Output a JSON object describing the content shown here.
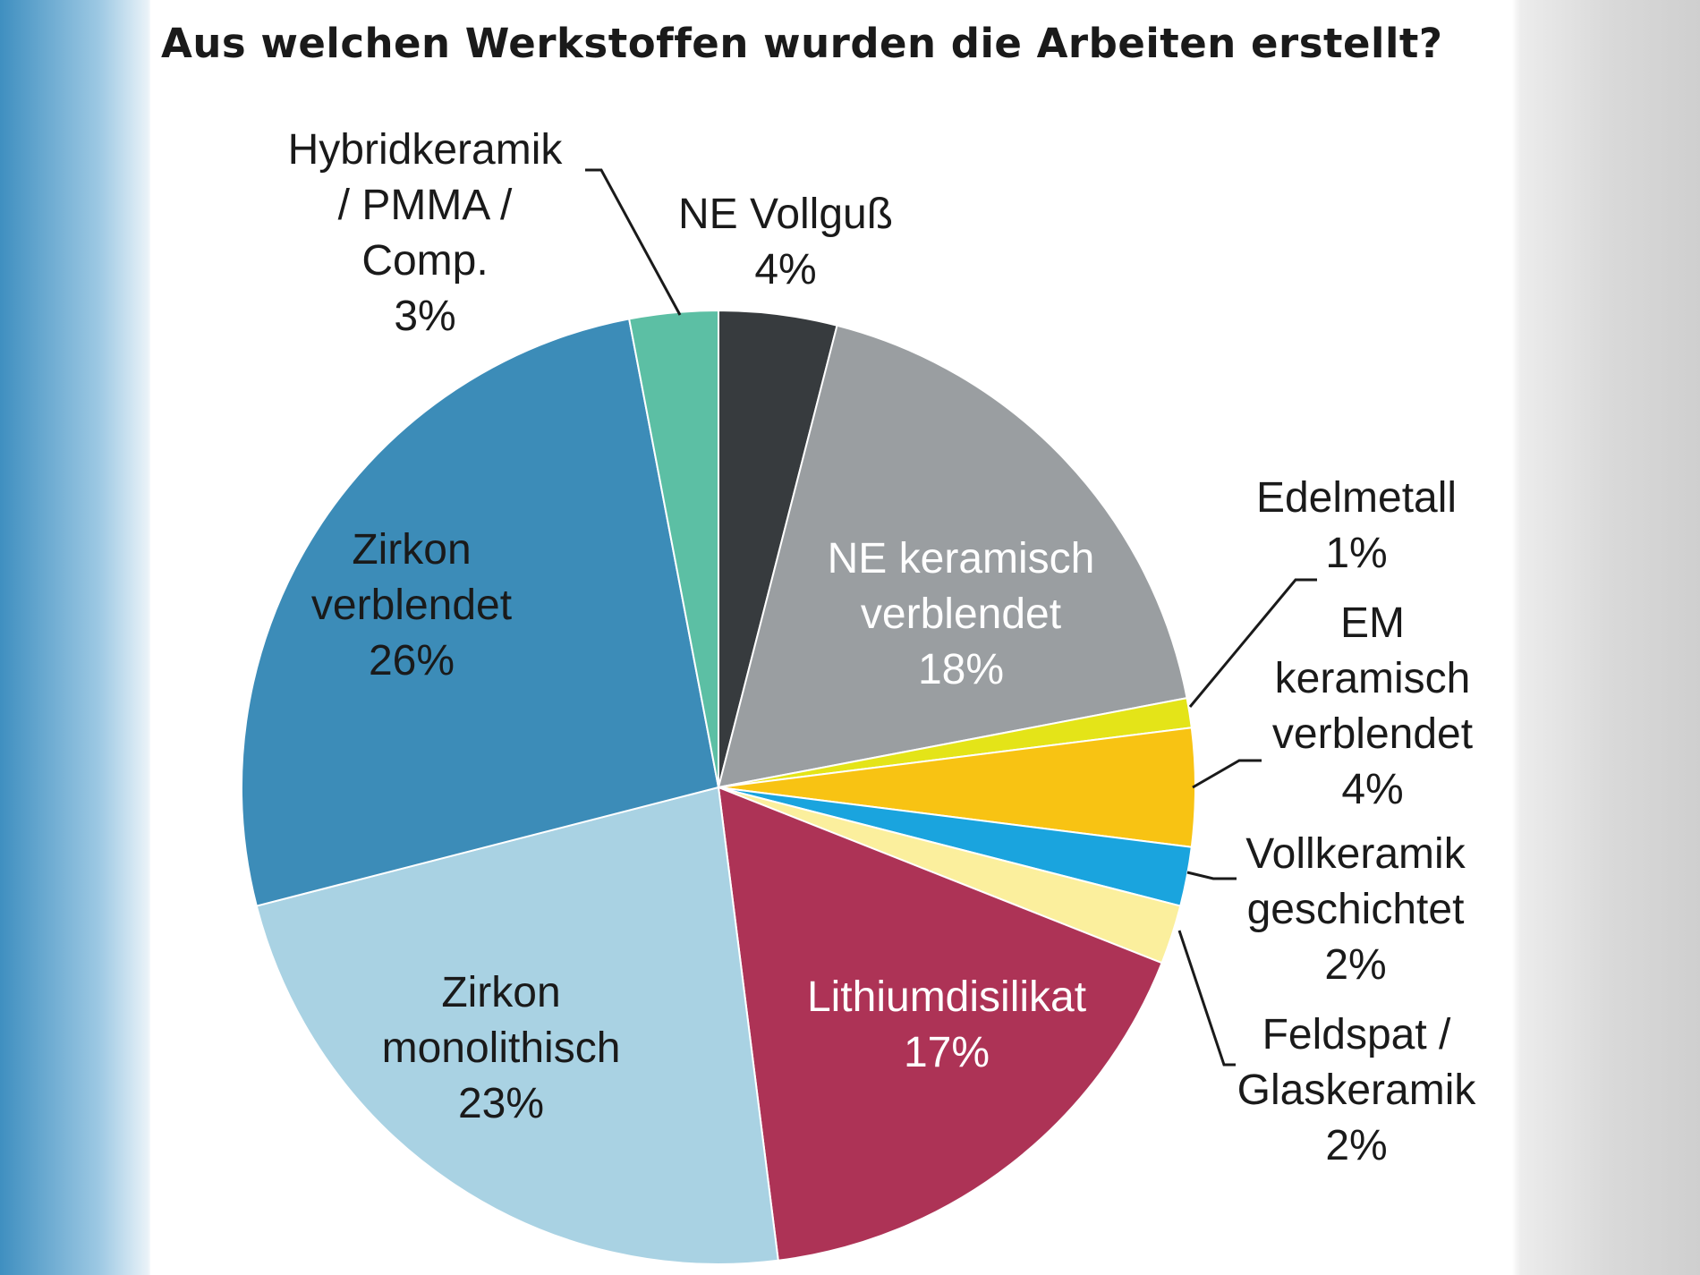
{
  "title": "Aus welchen Werkstoffen wurden die Arbeiten erstellt?",
  "chart_data": {
    "type": "pie",
    "title": "Aus welchen Werkstoffen wurden die Arbeiten erstellt?",
    "slices": [
      {
        "label": "NE Vollguß",
        "value": 4,
        "value_label": "4%",
        "color": "#373b3e",
        "label_lines": [
          "NE Vollguß"
        ]
      },
      {
        "label": "NE keramisch verblendet",
        "value": 18,
        "value_label": "18%",
        "color": "#9a9ea1",
        "label_lines": [
          "NE keramisch",
          "verblendet"
        ]
      },
      {
        "label": "Edelmetall",
        "value": 1,
        "value_label": "1%",
        "color": "#e4e418",
        "label_lines": [
          "Edelmetall"
        ]
      },
      {
        "label": "EM keramisch verblendet",
        "value": 4,
        "value_label": "4%",
        "color": "#f8c313",
        "label_lines": [
          "EM",
          "keramisch",
          "verblendet"
        ]
      },
      {
        "label": "Vollkeramik geschichtet",
        "value": 2,
        "value_label": "2%",
        "color": "#1aa4de",
        "label_lines": [
          "Vollkeramik",
          "geschichtet"
        ]
      },
      {
        "label": "Feldspat / Glaskeramik",
        "value": 2,
        "value_label": "2%",
        "color": "#fbef9d",
        "label_lines": [
          "Feldspat /",
          "Glaskeramik"
        ]
      },
      {
        "label": "Lithiumdisilikat",
        "value": 17,
        "value_label": "17%",
        "color": "#ad3356",
        "label_lines": [
          "Lithiumdisilikat"
        ]
      },
      {
        "label": "Zirkon monolithisch",
        "value": 23,
        "value_label": "23%",
        "color": "#a9d2e3",
        "label_lines": [
          "Zirkon",
          "monolithisch"
        ]
      },
      {
        "label": "Zirkon verblendet",
        "value": 26,
        "value_label": "26%",
        "color": "#3c8cb8",
        "label_lines": [
          "Zirkon",
          "verblendet"
        ]
      },
      {
        "label": "Hybridkeramik / PMMA / Comp.",
        "value": 3,
        "value_label": "3%",
        "color": "#5cbfa4",
        "label_lines": [
          "Hybridkeramik",
          "/ PMMA /",
          "Comp."
        ]
      }
    ]
  }
}
